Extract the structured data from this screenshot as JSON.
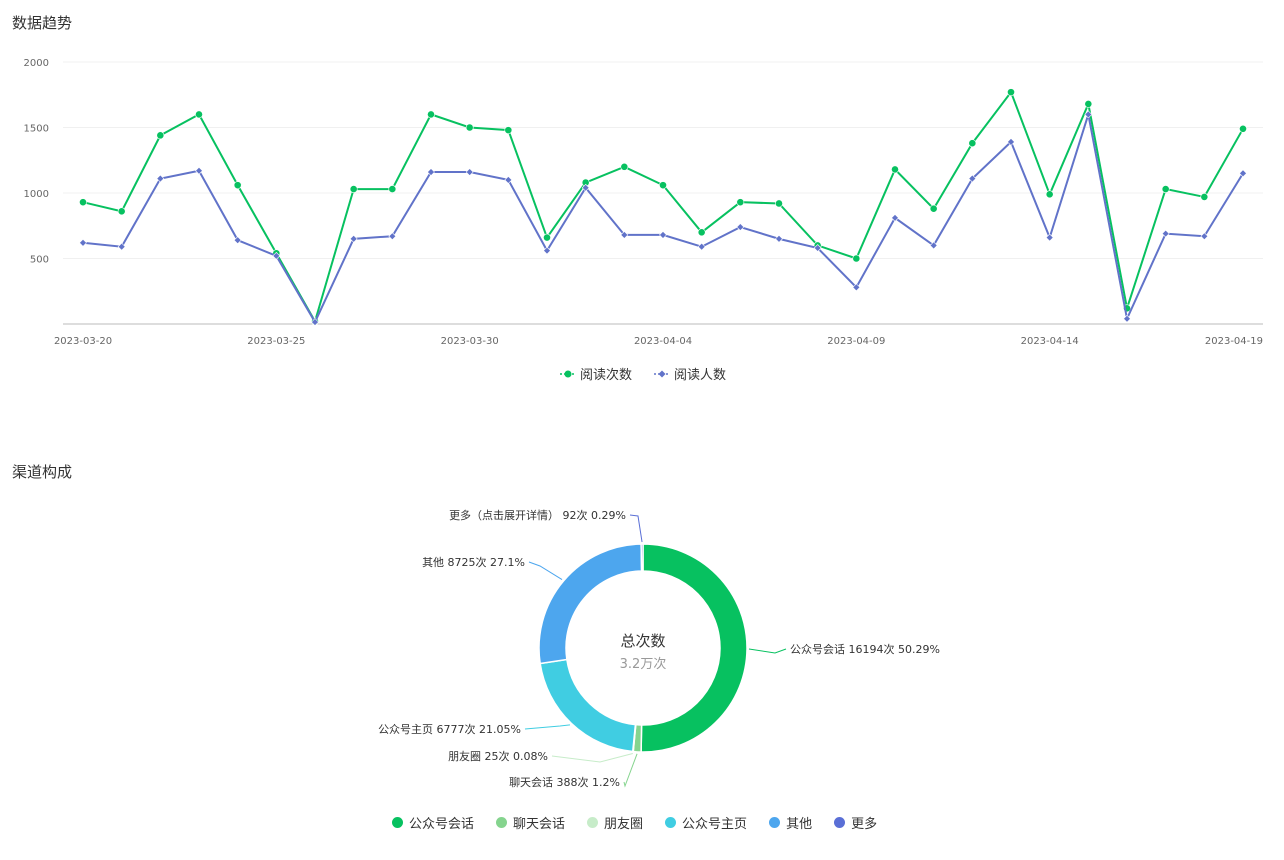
{
  "trend": {
    "title": "数据趋势"
  },
  "channel": {
    "title": "渠道构成",
    "center_title": "总次数",
    "center_value": "3.2万次"
  },
  "chart_data": [
    {
      "type": "line",
      "title": "数据趋势",
      "x": [
        "2023-03-20",
        "2023-03-21",
        "2023-03-22",
        "2023-03-23",
        "2023-03-24",
        "2023-03-25",
        "2023-03-26",
        "2023-03-27",
        "2023-03-28",
        "2023-03-29",
        "2023-03-30",
        "2023-03-31",
        "2023-04-01",
        "2023-04-02",
        "2023-04-03",
        "2023-04-04",
        "2023-04-05",
        "2023-04-06",
        "2023-04-07",
        "2023-04-08",
        "2023-04-09",
        "2023-04-10",
        "2023-04-11",
        "2023-04-12",
        "2023-04-13",
        "2023-04-14",
        "2023-04-15",
        "2023-04-16",
        "2023-04-17",
        "2023-04-18",
        "2023-04-19"
      ],
      "x_tick_labels": [
        "2023-03-20",
        "2023-03-25",
        "2023-03-30",
        "2023-04-04",
        "2023-04-09",
        "2023-04-14",
        "2023-04-19"
      ],
      "y_ticks": [
        500,
        1000,
        1500,
        2000
      ],
      "ylim": [
        0,
        2000
      ],
      "grid": true,
      "legend_position": "bottom-center",
      "series": [
        {
          "name": "阅读次数",
          "color": "#07c160",
          "marker": "circle",
          "values": [
            930,
            860,
            1440,
            1600,
            1060,
            540,
            20,
            1030,
            1030,
            1600,
            1500,
            1480,
            660,
            1080,
            1200,
            1060,
            700,
            930,
            920,
            600,
            500,
            1180,
            880,
            1380,
            1770,
            990,
            1680,
            120,
            1030,
            970,
            1490
          ]
        },
        {
          "name": "阅读人数",
          "color": "#6173c9",
          "marker": "diamond",
          "values": [
            620,
            590,
            1110,
            1170,
            640,
            520,
            15,
            650,
            670,
            1160,
            1160,
            1100,
            560,
            1040,
            680,
            680,
            590,
            740,
            650,
            580,
            280,
            810,
            600,
            1110,
            1390,
            660,
            1600,
            40,
            690,
            670,
            1150
          ]
        }
      ]
    },
    {
      "type": "pie",
      "title": "渠道构成",
      "inner_text": [
        "总次数",
        "3.2万次"
      ],
      "legend_position": "bottom-center",
      "slices": [
        {
          "name": "公众号会话",
          "value": 16194,
          "percent": "50.29%",
          "label": "公众号会话 16194次 50.29%",
          "color": "#07c160"
        },
        {
          "name": "聊天会话",
          "value": 388,
          "percent": "1.2%",
          "label": "聊天会话 388次 1.2%",
          "color": "#85d48e"
        },
        {
          "name": "朋友圈",
          "value": 25,
          "percent": "0.08%",
          "label": "朋友圈 25次 0.08%",
          "color": "#c7ecc9"
        },
        {
          "name": "公众号主页",
          "value": 6777,
          "percent": "21.05%",
          "label": "公众号主页 6777次 21.05%",
          "color": "#40cde2"
        },
        {
          "name": "其他",
          "value": 8725,
          "percent": "27.1%",
          "label": "其他 8725次 27.1%",
          "color": "#4da6ee"
        },
        {
          "name": "更多",
          "value": 92,
          "percent": "0.29%",
          "label": "更多（点击展开详情） 92次 0.29%",
          "color": "#5a6fd6"
        }
      ]
    }
  ]
}
